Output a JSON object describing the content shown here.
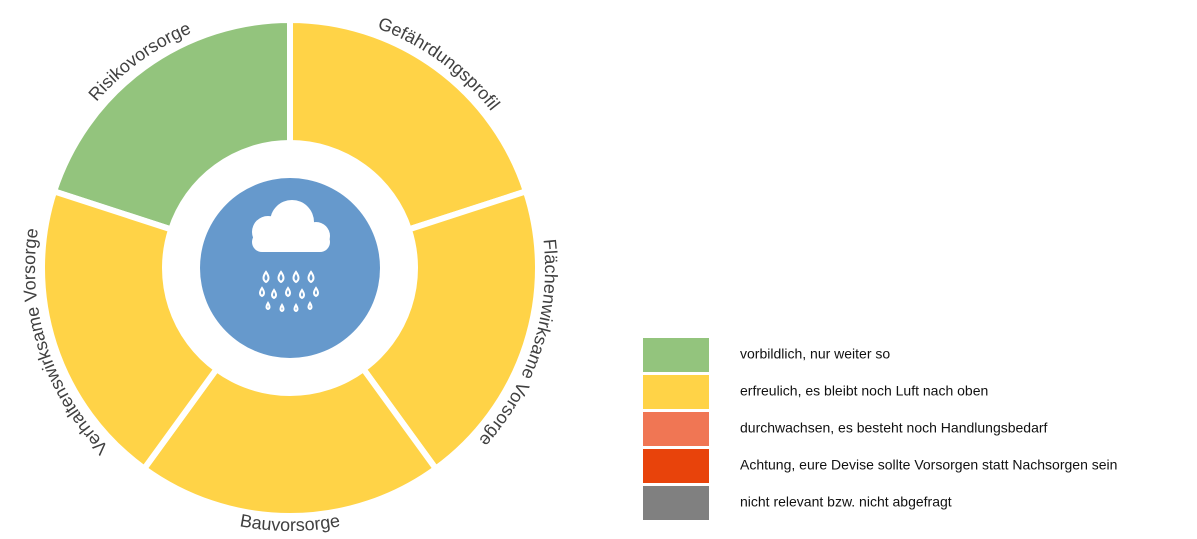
{
  "segments": [
    {
      "label": "Risikovorsorge",
      "color": "#93c47d"
    },
    {
      "label": "Gefährdungsprofil",
      "color": "#ffd347"
    },
    {
      "label": "Flächenwirksame Vorsorge",
      "color": "#ffd347"
    },
    {
      "label": "Bauvorsorge",
      "color": "#ffd347"
    },
    {
      "label": "Verhaltenswirksame Vorsorge",
      "color": "#ffd347"
    }
  ],
  "legend": [
    {
      "label": "vorbildlich, nur weiter so",
      "color": "#93c47d"
    },
    {
      "label": "erfreulich, es bleibt noch Luft nach oben",
      "color": "#ffd347"
    },
    {
      "label": "durchwachsen, es besteht noch Handlungsbedarf",
      "color": "#f07654"
    },
    {
      "label": "Achtung, eure Devise sollte Vorsorgen statt Nachsorgen sein",
      "color": "#e8430b"
    },
    {
      "label": "nicht relevant bzw. nicht abgefragt",
      "color": "#808080"
    }
  ]
}
